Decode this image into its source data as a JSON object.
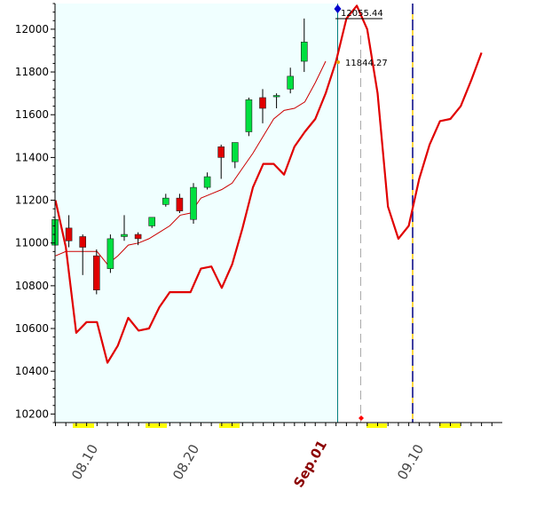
{
  "chart_data": {
    "type": "candlestick",
    "ylim": [
      10160,
      12120
    ],
    "y_ticks": [
      10200,
      10400,
      10600,
      10800,
      11000,
      11200,
      11400,
      11600,
      11800,
      12000
    ],
    "x_tick_labels": [
      {
        "label": "08.10",
        "bold": false
      },
      {
        "label": "08.20",
        "bold": false
      },
      {
        "label": "Sep.01",
        "bold": true
      },
      {
        "label": "09.10",
        "bold": false
      }
    ],
    "candles": [
      {
        "o": 10990,
        "h": 11130,
        "l": 10970,
        "c": 11110
      },
      {
        "o": 11070,
        "h": 11130,
        "l": 10980,
        "c": 11010
      },
      {
        "o": 11030,
        "h": 11040,
        "l": 10850,
        "c": 10980
      },
      {
        "o": 10940,
        "h": 10970,
        "l": 10760,
        "c": 10780
      },
      {
        "o": 10880,
        "h": 11040,
        "l": 10860,
        "c": 11020
      },
      {
        "o": 11030,
        "h": 11130,
        "l": 11010,
        "c": 11040
      },
      {
        "o": 11040,
        "h": 11050,
        "l": 10990,
        "c": 11020
      },
      {
        "o": 11080,
        "h": 11110,
        "l": 11070,
        "c": 11120
      },
      {
        "o": 11180,
        "h": 11230,
        "l": 11170,
        "c": 11210
      },
      {
        "o": 11210,
        "h": 11230,
        "l": 11140,
        "c": 11150
      },
      {
        "o": 11110,
        "h": 11280,
        "l": 11090,
        "c": 11260
      },
      {
        "o": 11260,
        "h": 11330,
        "l": 11250,
        "c": 11310
      },
      {
        "o": 11450,
        "h": 11460,
        "l": 11300,
        "c": 11400
      },
      {
        "o": 11380,
        "h": 11470,
        "l": 11350,
        "c": 11470
      },
      {
        "o": 11520,
        "h": 11680,
        "l": 11500,
        "c": 11670
      },
      {
        "o": 11680,
        "h": 11720,
        "l": 11560,
        "c": 11630
      },
      {
        "o": 11690,
        "h": 11700,
        "l": 11630,
        "c": 11690
      },
      {
        "o": 11720,
        "h": 11820,
        "l": 11700,
        "c": 11780
      },
      {
        "o": 11850,
        "h": 12050,
        "l": 11800,
        "c": 11940
      }
    ],
    "series": [
      {
        "values": [
          11200,
          10980,
          10580,
          10630,
          10630,
          10440,
          10520,
          10650,
          10590,
          10600,
          10700,
          10770,
          10770,
          10770,
          10880,
          10890,
          10790,
          10900,
          11070,
          11260,
          11370,
          11370,
          11320,
          11450,
          11520,
          11580,
          11700,
          11850,
          12050,
          12110,
          12000,
          11700,
          11170,
          11020,
          11080,
          11300,
          11460,
          11570,
          11580,
          11640,
          11760,
          11890
        ]
      },
      {
        "values": [
          10940,
          10960,
          10960,
          10960,
          10960,
          10900,
          10940,
          10990,
          11000,
          11020,
          11050,
          11080,
          11130,
          11140,
          11210,
          11230,
          11250,
          11280,
          11350,
          11420,
          11500,
          11580,
          11620,
          11630,
          11660,
          11750,
          11850
        ]
      }
    ],
    "annotations": [
      {
        "text": "12055.44"
      },
      {
        "text": "11844.27"
      }
    ]
  }
}
